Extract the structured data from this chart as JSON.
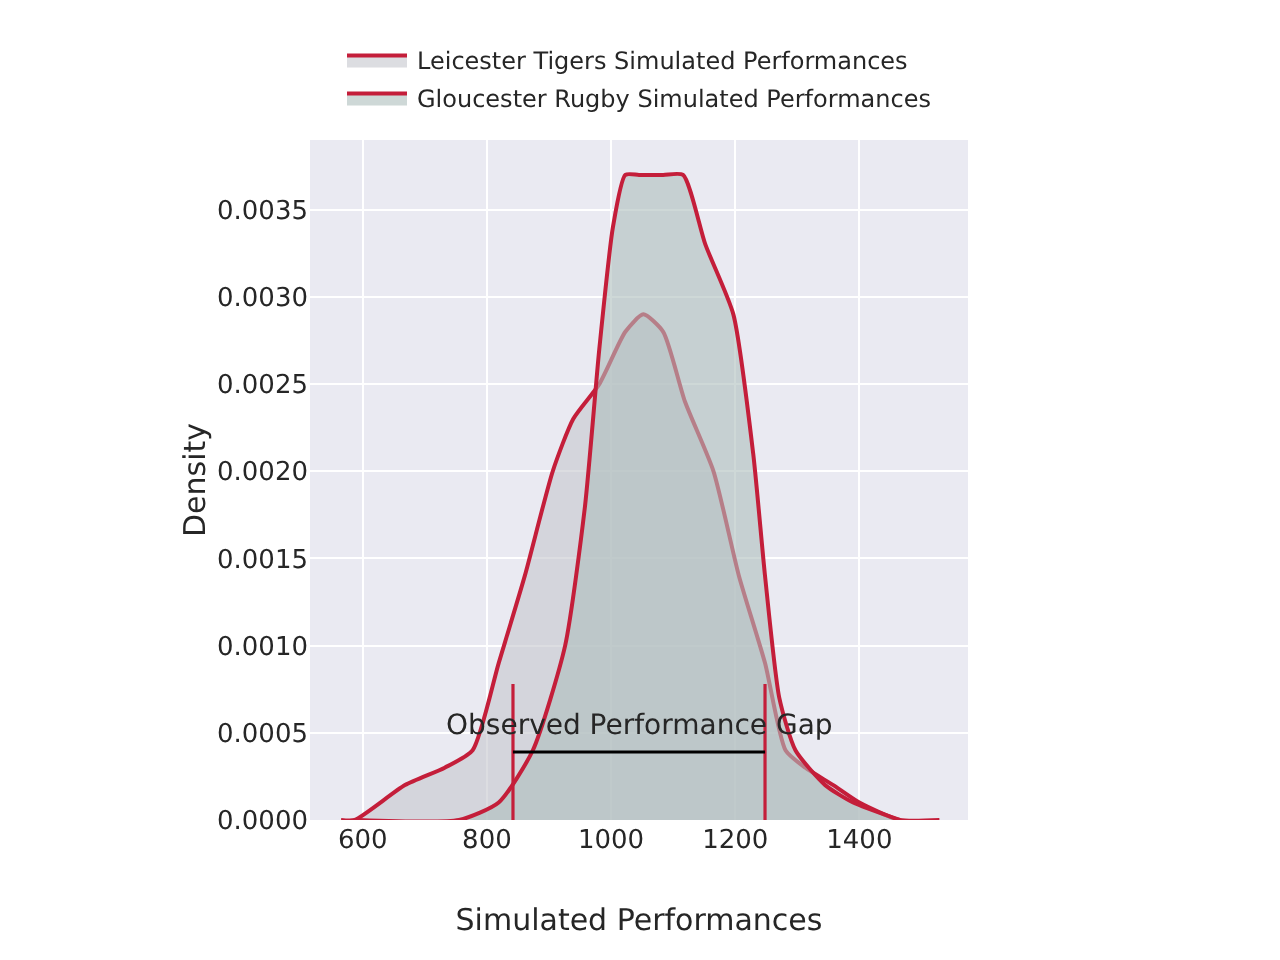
{
  "chart_data": {
    "type": "area",
    "xlabel": "Simulated Performances",
    "ylabel": "Density",
    "xlim": [
      515,
      1575
    ],
    "xticks": [
      600,
      800,
      1000,
      1200,
      1400
    ],
    "ylim": [
      0,
      0.0039
    ],
    "yticks": [
      {
        "value": 0,
        "label": "0.0000"
      },
      {
        "value": 0.0005,
        "label": "0.0005"
      },
      {
        "value": 0.001,
        "label": "0.0010"
      },
      {
        "value": 0.0015,
        "label": "0.0015"
      },
      {
        "value": 0.002,
        "label": "0.0020"
      },
      {
        "value": 0.0025,
        "label": "0.0025"
      },
      {
        "value": 0.003,
        "label": "0.0030"
      },
      {
        "value": 0.0035,
        "label": "0.0035"
      }
    ],
    "grid": true,
    "legend": "top",
    "series": [
      {
        "name": "Leicester Tigers Simulated Performances",
        "color": "#c5c6cd",
        "x": [
          565,
          587,
          668,
          732,
          777,
          819,
          861,
          906,
          939,
          981,
          1023,
          1052,
          1084,
          1119,
          1165,
          1206,
          1248,
          1281,
          1313,
          1358,
          1400,
          1465,
          1529
        ],
        "values": [
          0,
          0,
          0.0002,
          0.0003,
          0.0004,
          0.0009,
          0.0014,
          0.002,
          0.0023,
          0.0025,
          0.0028,
          0.0029,
          0.0028,
          0.0024,
          0.002,
          0.0014,
          0.0009,
          0.0004,
          0.0003,
          0.0002,
          0.0001,
          0,
          0
        ]
      },
      {
        "name": "Gloucester Rugby Simulated Performances",
        "color": "#aebebd",
        "x": [
          594,
          755,
          819,
          874,
          926,
          958,
          981,
          1003,
          1023,
          1045,
          1084,
          1116,
          1152,
          1197,
          1229,
          1248,
          1271,
          1297,
          1345,
          1390,
          1465
        ],
        "values": [
          0,
          0,
          0.0001,
          0.0004,
          0.001,
          0.0018,
          0.0027,
          0.0034,
          0.0037,
          0.0037,
          0.0037,
          0.0037,
          0.0033,
          0.0029,
          0.0021,
          0.0014,
          0.0007,
          0.0004,
          0.0002,
          0.0001,
          0
        ]
      }
    ],
    "ref_lines": [
      {
        "axis": "x",
        "value": 842,
        "color": "#c41e3a"
      },
      {
        "axis": "x",
        "value": 1248,
        "color": "#c41e3a"
      }
    ],
    "annotations": [
      "Observed Performance Gap"
    ]
  }
}
